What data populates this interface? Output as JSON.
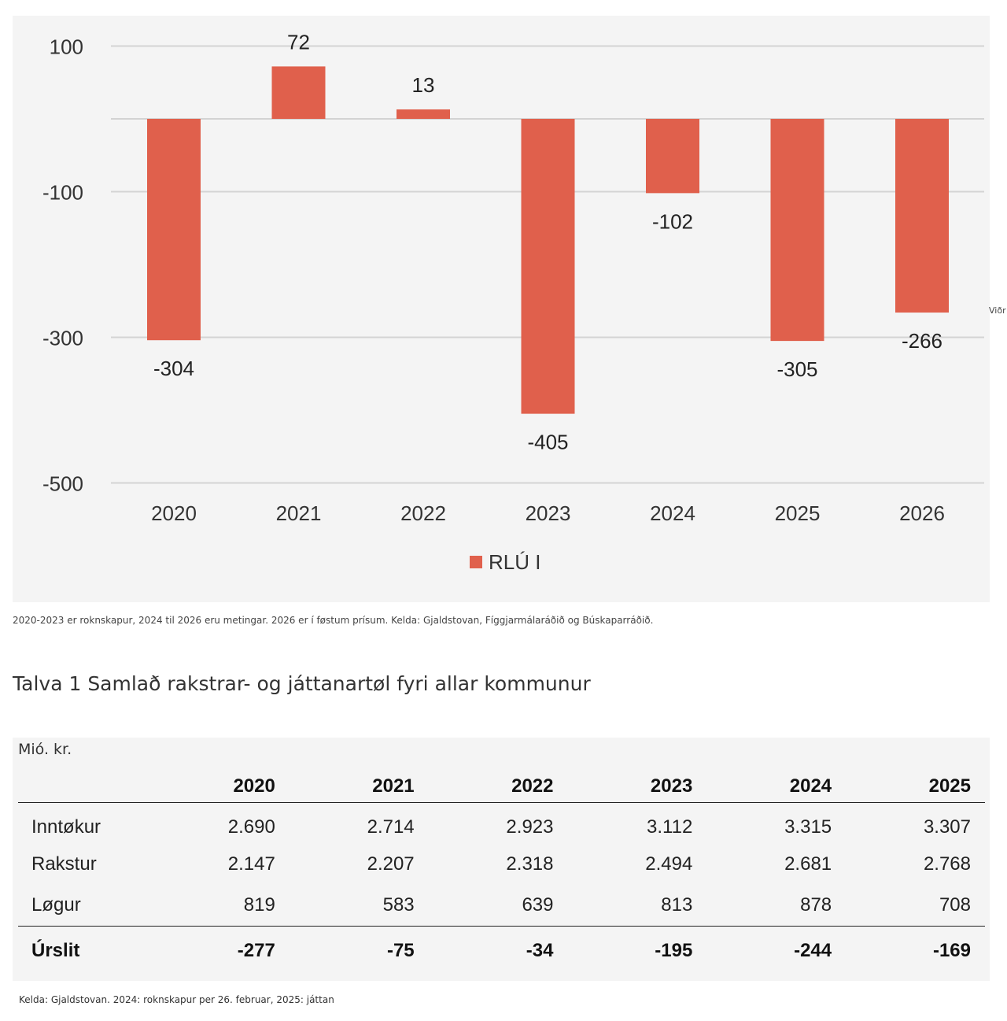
{
  "chart_data": {
    "type": "bar",
    "categories": [
      "2020",
      "2021",
      "2022",
      "2023",
      "2024",
      "2025",
      "2026"
    ],
    "series": [
      {
        "name": "RLÚ I",
        "values": [
          -304,
          72,
          13,
          -405,
          -102,
          -305,
          -266
        ],
        "color": "#e0604c"
      }
    ],
    "data_labels": [
      "-304",
      "72",
      "13",
      "-405",
      "-102",
      "-305",
      "-266"
    ],
    "yticks": [
      100,
      -100,
      -300,
      -500
    ],
    "ytick_labels": [
      "100",
      "-100",
      "-300",
      "-500"
    ],
    "ylim": [
      -500,
      100
    ],
    "grid": true,
    "legend": {
      "label": "RLÚ I",
      "placement": "bottom"
    },
    "side_label": "Viðr"
  },
  "chart_caption": "2020-2023 er roknskapur, 2024 til 2026 eru metingar. 2026 er í føstum prísum. Kelda: Gjaldstovan, Fíggjarmálaráðið og Búskaparráðið.",
  "table": {
    "title": "Talva 1 Samlað rakstrar- og játtanartøl fyri allar kommunur",
    "unit": "Mió. kr.",
    "columns": [
      "",
      "2020",
      "2021",
      "2022",
      "2023",
      "2024",
      "2025"
    ],
    "rows": [
      {
        "label": "Inntøkur",
        "values": [
          "2.690",
          "2.714",
          "2.923",
          "3.112",
          "3.315",
          "3.307"
        ]
      },
      {
        "label": "Rakstur",
        "values": [
          "2.147",
          "2.207",
          "2.318",
          "2.494",
          "2.681",
          "2.768"
        ]
      },
      {
        "label": "Løgur",
        "values": [
          "819",
          "583",
          "639",
          "813",
          "878",
          "708"
        ]
      }
    ],
    "total": {
      "label": "Úrslit",
      "values": [
        "-277",
        "-75",
        "-34",
        "-195",
        "-244",
        "-169"
      ]
    },
    "source": "Kelda: Gjaldstovan. 2024: roknskapur per 26. februar, 2025: játtan"
  }
}
